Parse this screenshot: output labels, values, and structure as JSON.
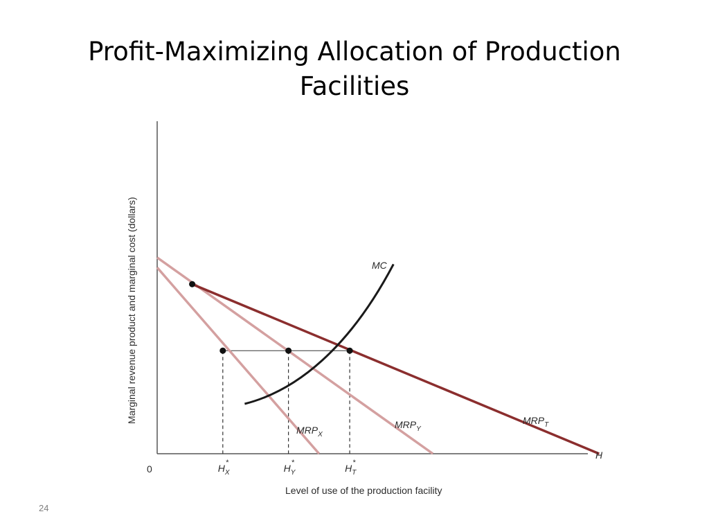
{
  "slide": {
    "title_line1": "Profit-Maximizing Allocation of Production",
    "title_line2": "Facilities",
    "page_number": "24"
  },
  "chart_data": {
    "type": "line",
    "title": "Profit-Maximizing Allocation of Production Facilities",
    "xlabel": "Level of use of the production facility",
    "ylabel": "Marginal revenue product and marginal cost (dollars)",
    "x_axis_end_label": "H",
    "origin_label": "0",
    "xlim": [
      0,
      10
    ],
    "ylim": [
      0,
      10
    ],
    "grid": false,
    "legend": "none (curves labelled directly)",
    "colors": {
      "mrp_t": "#8b2e2e",
      "mrp_xy": "#d4a0a0",
      "mc": "#1a1a1a",
      "axis": "#555555"
    },
    "series": [
      {
        "name": "MRP",
        "subscript": "X",
        "points": [
          [
            0,
            5.6
          ],
          [
            3.7,
            0
          ]
        ]
      },
      {
        "name": "MRP",
        "subscript": "Y",
        "points": [
          [
            0,
            5.9
          ],
          [
            6.3,
            0
          ]
        ]
      },
      {
        "name": "MRP",
        "subscript": "T",
        "points": [
          [
            0.8,
            5.1
          ],
          [
            10.1,
            0
          ]
        ]
      },
      {
        "name": "MC",
        "subscript": "",
        "points": [
          [
            2.0,
            1.5
          ],
          [
            3.2,
            1.9
          ],
          [
            4.4,
            3.2
          ],
          [
            5.4,
            5.7
          ]
        ]
      }
    ],
    "markers": [
      {
        "x": 0.8,
        "y": 5.1
      },
      {
        "x": 1.5,
        "y": 3.1
      },
      {
        "x": 3.0,
        "y": 3.1
      },
      {
        "x": 4.4,
        "y": 3.1
      }
    ],
    "equilibrium_y": 3.1,
    "tick_labels": [
      {
        "x": 1.5,
        "base": "H",
        "sub": "X",
        "sup": "*"
      },
      {
        "x": 3.0,
        "base": "H",
        "sub": "Y",
        "sup": "*"
      },
      {
        "x": 4.4,
        "base": "H",
        "sub": "T",
        "sup": "*"
      }
    ]
  }
}
